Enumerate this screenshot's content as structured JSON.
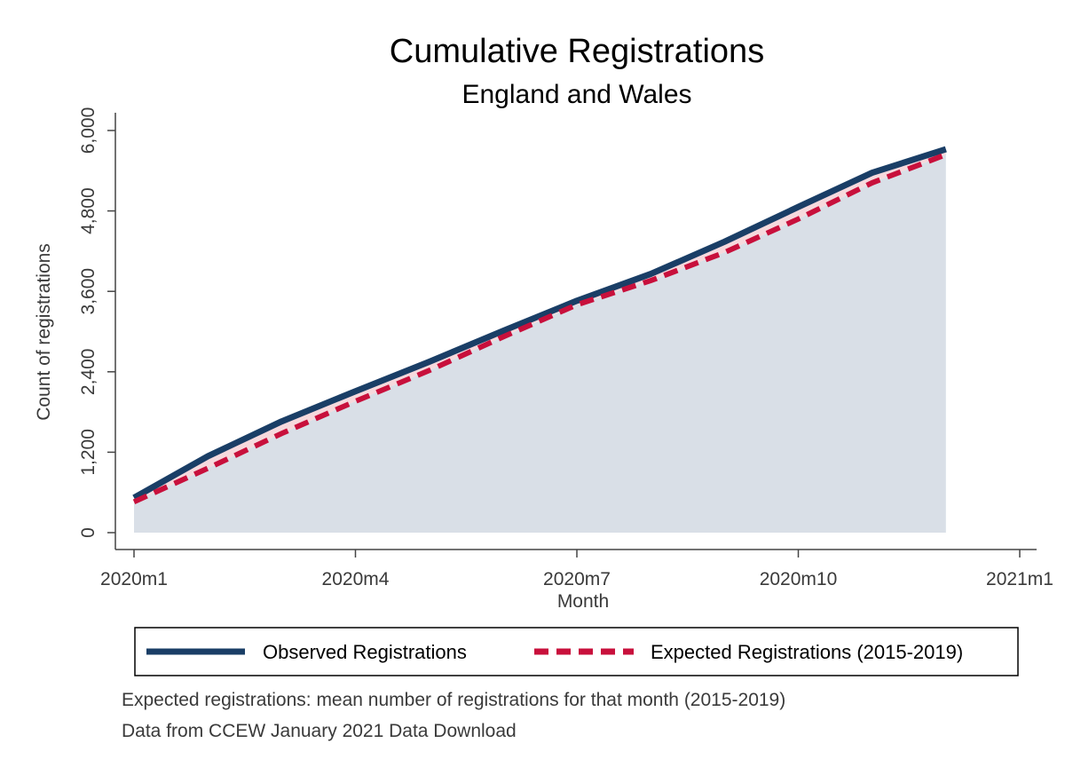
{
  "chart_data": {
    "type": "area",
    "title": "Cumulative Registrations",
    "subtitle": "England and Wales",
    "xlabel": "Month",
    "ylabel": "Count of registrations",
    "x_ticks": [
      "2020m1",
      "2020m4",
      "2020m7",
      "2020m10",
      "2021m1"
    ],
    "x_range": [
      0,
      12
    ],
    "y_ticks": [
      0,
      1200,
      2400,
      3600,
      4800,
      6000
    ],
    "y_tick_labels": [
      "0",
      "1,200",
      "2,400",
      "3,600",
      "4,800",
      "6,000"
    ],
    "ylim": [
      0,
      6300
    ],
    "x": [
      0,
      1,
      2,
      3,
      4,
      5,
      6,
      7,
      8,
      9,
      10,
      11
    ],
    "series": [
      {
        "name": "Observed Registrations",
        "color": "#1a3e66",
        "style": "solid",
        "values": [
          520,
          1140,
          1660,
          2110,
          2550,
          3010,
          3460,
          3860,
          4340,
          4860,
          5370,
          5720
        ]
      },
      {
        "name": "Expected Registrations (2015-2019)",
        "color": "#c8103c",
        "style": "dashed",
        "values": [
          460,
          960,
          1480,
          1960,
          2420,
          2920,
          3400,
          3760,
          4180,
          4680,
          5220,
          5640
        ]
      }
    ],
    "legend_position": "bottom",
    "fill_colors": {
      "area": "#d9dfe7",
      "gap": "#f6d9dd"
    }
  },
  "notes": [
    "Expected registrations: mean number of registrations for that month (2015-2019)",
    "Data from CCEW January 2021 Data Download"
  ]
}
